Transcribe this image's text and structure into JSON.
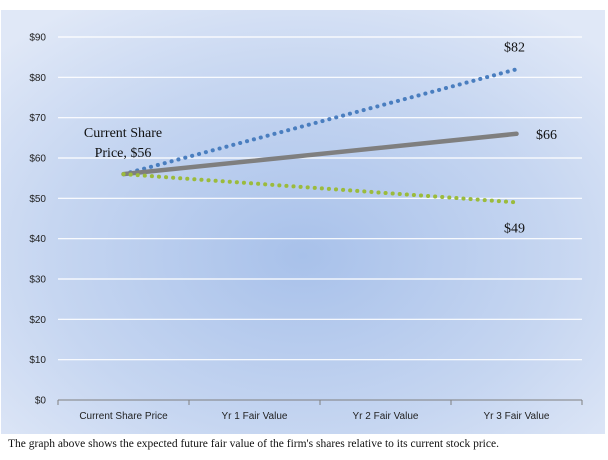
{
  "chart_data": {
    "type": "line",
    "categories": [
      "Current Share Price",
      "Yr 1 Fair Value",
      "Yr 2 Fair Value",
      "Yr 3 Fair Value"
    ],
    "ylim": [
      0,
      90
    ],
    "yticks": [
      0,
      10,
      20,
      30,
      40,
      50,
      60,
      70,
      80,
      90
    ],
    "ytick_labels": [
      "$0",
      "$10",
      "$20",
      "$30",
      "$40",
      "$50",
      "$60",
      "$70",
      "$80",
      "$90"
    ],
    "grid": true,
    "series": [
      {
        "key": "high",
        "start": 56,
        "end": 82,
        "style": "dotted",
        "color": "#4a7ebf"
      },
      {
        "key": "mid",
        "start": 56,
        "end": 66,
        "style": "solid",
        "color": "#7f7f7f"
      },
      {
        "key": "low",
        "start": 56,
        "end": 49,
        "style": "dotted",
        "color": "#9bbb3c"
      }
    ],
    "annotations": {
      "current_line1": "Current Share",
      "current_line2": "Price, $56",
      "high_value": "$82",
      "mid_value": "$66",
      "low_value": "$49"
    }
  },
  "caption": "The graph above shows the expected future fair value of the firm's shares relative to its current stock price."
}
